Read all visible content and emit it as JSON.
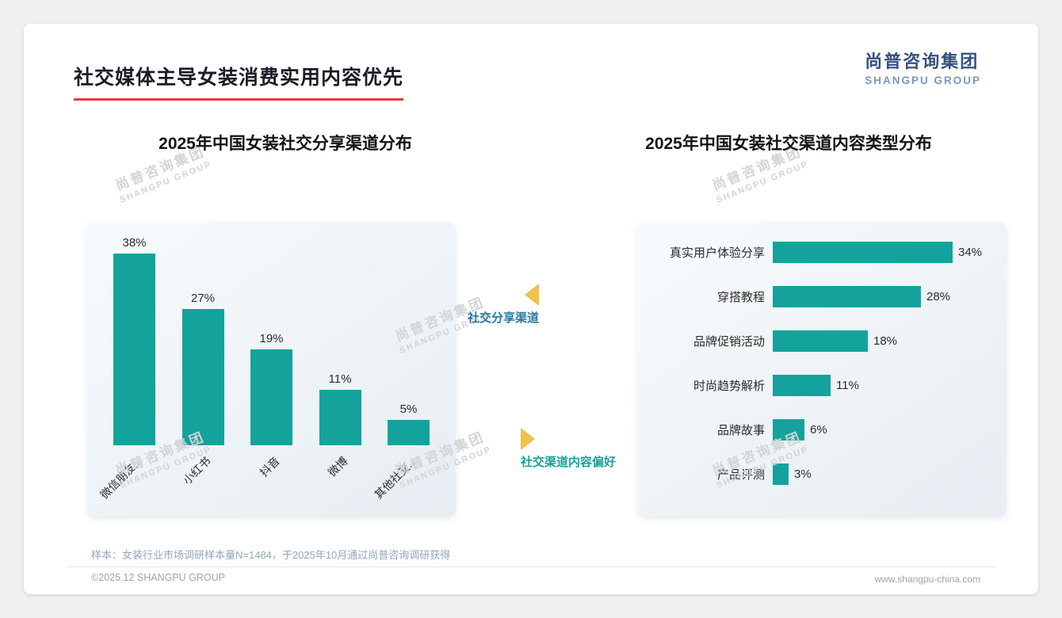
{
  "page": {
    "title": "社交媒体主导女装消费实用内容优先",
    "logo": {
      "cn": "尚普咨询集团",
      "en": "SHANGPU GROUP"
    },
    "watermark": {
      "cn": "尚普咨询集团",
      "en": "SHANGPU GROUP"
    },
    "footnote": "样本：女装行业市场调研样本量N=1484，于2025年10月通过尚普咨询调研获得",
    "footer": {
      "left": "©2025.12 SHANGPU GROUP",
      "right": "www.shangpu-china.com"
    }
  },
  "annotations": {
    "left": {
      "label": "社交分享渠道",
      "arrow": "left",
      "arrow_color": "#f0c14b"
    },
    "right": {
      "label": "社交渠道内容偏好",
      "arrow": "right",
      "arrow_color": "#f0c14b"
    }
  },
  "colors": {
    "bar_teal": "#14a39c",
    "title_underline_red": "#e23d3d",
    "logo_navy": "#33517e"
  },
  "chart_data": [
    {
      "type": "bar",
      "orientation": "vertical",
      "title": "2025年中国女装社交分享渠道分布",
      "categories": [
        "微信朋友...",
        "小红书",
        "抖音",
        "微博",
        "其他社交..."
      ],
      "values": [
        38,
        27,
        19,
        11,
        5
      ],
      "unit": "%",
      "ylim": [
        0,
        40
      ],
      "grid": false,
      "bar_color": "#14a39c",
      "legend": "none"
    },
    {
      "type": "bar",
      "orientation": "horizontal",
      "title": "2025年中国女装社交渠道内容类型分布",
      "categories": [
        "真实用户体验分享",
        "穿搭教程",
        "品牌促销活动",
        "时尚趋势解析",
        "品牌故事",
        "产品评测"
      ],
      "values": [
        34,
        28,
        18,
        11,
        6,
        3
      ],
      "unit": "%",
      "xlim": [
        0,
        40
      ],
      "grid": false,
      "bar_color": "#14a39c",
      "legend": "none"
    }
  ]
}
